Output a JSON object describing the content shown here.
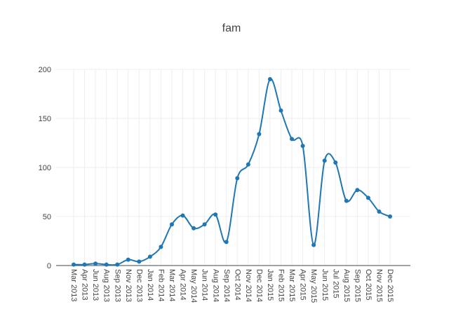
{
  "chart_data": {
    "type": "line",
    "title": "fam",
    "xlabel": "",
    "ylabel": "",
    "ylim": [
      0,
      200
    ],
    "yticks": [
      0,
      50,
      100,
      150,
      200
    ],
    "grid": true,
    "legend": "none",
    "colors": {
      "line": "#1f77b4",
      "grid": "#eeeeee",
      "zero_line": "#444444",
      "text": "#444444"
    },
    "categories": [
      "Mar 2013",
      "Apr 2013",
      "Jun 2013",
      "Aug 2013",
      "Sep 2013",
      "Nov 2013",
      "Dec 2013",
      "Jan 2014",
      "Feb 2014",
      "Mar 2014",
      "Apr 2014",
      "May 2014",
      "Jun 2014",
      "Aug 2014",
      "Sep 2014",
      "Oct 2014",
      "Nov 2014",
      "Dec 2014",
      "Jan 2015",
      "Feb 2015",
      "Mar 2015",
      "Apr 2015",
      "May 2015",
      "Jun 2015",
      "Jul 2015",
      "Aug 2015",
      "Sep 2015",
      "Oct 2015",
      "Nov 2015",
      "Dec 2015"
    ],
    "series": [
      {
        "values": [
          1,
          1,
          2,
          1,
          1,
          6,
          4,
          9,
          19,
          42,
          51,
          38,
          42,
          52,
          24,
          89,
          103,
          134,
          190,
          158,
          129,
          122,
          21,
          107,
          105,
          66,
          77,
          69,
          55,
          50
        ]
      }
    ]
  }
}
